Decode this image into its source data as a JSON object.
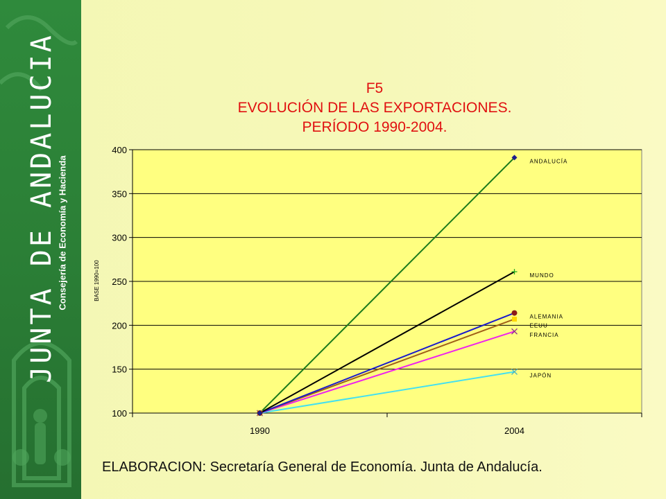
{
  "sidebar": {
    "brand": "JUNTA DE ANDALUCIA",
    "department": "Consejería de Economía y Hacienda"
  },
  "chart_data": {
    "type": "line",
    "title_lines": [
      "F5",
      "EVOLUCIÓN DE LAS EXPORTACIONES.",
      "PERÍODO 1990-2004."
    ],
    "ylabel": "BASE 1990=100",
    "xlabel": "",
    "categories": [
      "1990",
      "2004"
    ],
    "ylim": [
      100,
      400
    ],
    "yticks": [
      100,
      150,
      200,
      250,
      300,
      350,
      400
    ],
    "grid": true,
    "legend": "inline-right",
    "series": [
      {
        "name": "ANDALUCÍA",
        "values": [
          100,
          391
        ],
        "color": "#1a7a1a",
        "marker": "diamond",
        "markerColor": "#1c1c8c"
      },
      {
        "name": "MUNDO",
        "values": [
          100,
          261
        ],
        "color": "#000000",
        "marker": "plus",
        "markerColor": "#22aa22"
      },
      {
        "name": "ALEMANIA",
        "values": [
          100,
          214
        ],
        "color": "#1a1acc",
        "marker": "circle",
        "markerColor": "#8b1a1a"
      },
      {
        "name": "EEUU",
        "values": [
          100,
          207
        ],
        "color": "#a06018",
        "marker": "square",
        "markerColor": "#ffd700"
      },
      {
        "name": "FRANCIA",
        "values": [
          100,
          193
        ],
        "color": "#ee22ee",
        "marker": "x",
        "markerColor": "#8b2b8b"
      },
      {
        "name": "JAPÓN",
        "values": [
          100,
          147
        ],
        "color": "#44e0f0",
        "marker": "x",
        "markerColor": "#44b0c0"
      }
    ]
  },
  "source": "ELABORACION: Secretaría General de Economía. Junta de Andalucía."
}
